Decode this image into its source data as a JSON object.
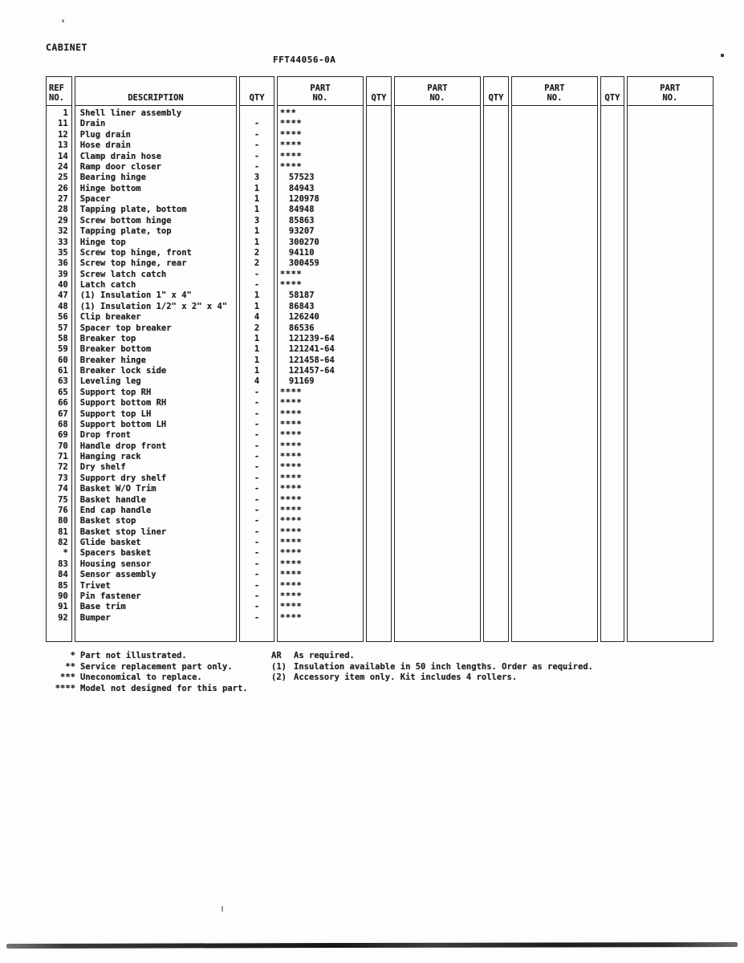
{
  "page": {
    "title": "CABINET",
    "doc_number": "FFT44056-0A"
  },
  "table": {
    "headers": {
      "ref": [
        "REF",
        "NO."
      ],
      "description": [
        "",
        "DESCRIPTION"
      ],
      "qty": [
        "",
        "QTY"
      ],
      "part": [
        "PART",
        "NO."
      ]
    },
    "rows": [
      {
        "ref": "1",
        "desc": "Shell liner assembly",
        "qty": "",
        "part": "***"
      },
      {
        "ref": "11",
        "desc": "Drain",
        "qty": "-",
        "part": "****"
      },
      {
        "ref": "12",
        "desc": "Plug drain",
        "qty": "-",
        "part": "****"
      },
      {
        "ref": "13",
        "desc": "Hose drain",
        "qty": "-",
        "part": "****"
      },
      {
        "ref": "14",
        "desc": "Clamp drain hose",
        "qty": "-",
        "part": "****"
      },
      {
        "ref": "24",
        "desc": "Ramp door closer",
        "qty": "-",
        "part": "****"
      },
      {
        "ref": "25",
        "desc": "Bearing hinge",
        "qty": "3",
        "part": "57523"
      },
      {
        "ref": "26",
        "desc": "Hinge bottom",
        "qty": "1",
        "part": "84943"
      },
      {
        "ref": "27",
        "desc": "Spacer",
        "qty": "1",
        "part": "120978"
      },
      {
        "ref": "28",
        "desc": "Tapping plate, bottom",
        "qty": "1",
        "part": "84948"
      },
      {
        "ref": "29",
        "desc": "Screw bottom hinge",
        "qty": "3",
        "part": "85863"
      },
      {
        "ref": "32",
        "desc": "Tapping plate, top",
        "qty": "1",
        "part": "93207"
      },
      {
        "ref": "33",
        "desc": "Hinge top",
        "qty": "1",
        "part": "300270"
      },
      {
        "ref": "35",
        "desc": "Screw top hinge, front",
        "qty": "2",
        "part": "94110"
      },
      {
        "ref": "36",
        "desc": "Screw top hinge, rear",
        "qty": "2",
        "part": "300459"
      },
      {
        "ref": "39",
        "desc": "Screw latch catch",
        "qty": "-",
        "part": "****"
      },
      {
        "ref": "40",
        "desc": "Latch catch",
        "qty": "-",
        "part": "****"
      },
      {
        "ref": "47",
        "desc": "(1) Insulation 1\" x 4\"",
        "qty": "1",
        "part": "58187"
      },
      {
        "ref": "48",
        "desc": "(1) Insulation 1/2\" x 2\" x 4\"",
        "qty": "1",
        "part": "86843"
      },
      {
        "ref": "56",
        "desc": "Clip breaker",
        "qty": "4",
        "part": "126240"
      },
      {
        "ref": "57",
        "desc": "Spacer top breaker",
        "qty": "2",
        "part": "86536"
      },
      {
        "ref": "58",
        "desc": "Breaker top",
        "qty": "1",
        "part": "121239-64"
      },
      {
        "ref": "59",
        "desc": "Breaker bottom",
        "qty": "1",
        "part": "121241-64"
      },
      {
        "ref": "60",
        "desc": "Breaker hinge",
        "qty": "1",
        "part": "121458-64"
      },
      {
        "ref": "61",
        "desc": "Breaker lock side",
        "qty": "1",
        "part": "121457-64"
      },
      {
        "ref": "63",
        "desc": "Leveling leg",
        "qty": "4",
        "part": "91169"
      },
      {
        "ref": "65",
        "desc": "Support top RH",
        "qty": "-",
        "part": "****"
      },
      {
        "ref": "66",
        "desc": "Support bottom RH",
        "qty": "-",
        "part": "****"
      },
      {
        "ref": "67",
        "desc": "Support top LH",
        "qty": "-",
        "part": "****"
      },
      {
        "ref": "68",
        "desc": "Support bottom LH",
        "qty": "-",
        "part": "****"
      },
      {
        "ref": "69",
        "desc": "Drop front",
        "qty": "-",
        "part": "****"
      },
      {
        "ref": "70",
        "desc": "Handle drop front",
        "qty": "-",
        "part": "****"
      },
      {
        "ref": "71",
        "desc": "Hanging rack",
        "qty": "-",
        "part": "****"
      },
      {
        "ref": "72",
        "desc": "Dry shelf",
        "qty": "-",
        "part": "****"
      },
      {
        "ref": "73",
        "desc": "Support dry shelf",
        "qty": "-",
        "part": "****"
      },
      {
        "ref": "74",
        "desc": "Basket W/O Trim",
        "qty": "-",
        "part": "****"
      },
      {
        "ref": "75",
        "desc": "Basket handle",
        "qty": "-",
        "part": "****"
      },
      {
        "ref": "76",
        "desc": "End cap handle",
        "qty": "-",
        "part": "****"
      },
      {
        "ref": "80",
        "desc": "Basket stop",
        "qty": "-",
        "part": "****"
      },
      {
        "ref": "81",
        "desc": "Basket stop liner",
        "qty": "-",
        "part": "****"
      },
      {
        "ref": "82",
        "desc": "Glide basket",
        "qty": "-",
        "part": "****"
      },
      {
        "ref": "*",
        "desc": "Spacers basket",
        "qty": "-",
        "part": "****"
      },
      {
        "ref": "83",
        "desc": "Housing sensor",
        "qty": "-",
        "part": "****"
      },
      {
        "ref": "84",
        "desc": "Sensor assembly",
        "qty": "-",
        "part": "****"
      },
      {
        "ref": "85",
        "desc": "Trivet",
        "qty": "-",
        "part": "****"
      },
      {
        "ref": "90",
        "desc": "Pin fastener",
        "qty": "-",
        "part": "****"
      },
      {
        "ref": "91",
        "desc": "Base trim",
        "qty": "-",
        "part": "****"
      },
      {
        "ref": "92",
        "desc": "Bumper",
        "qty": "-",
        "part": "****"
      }
    ]
  },
  "footnotes": {
    "left": [
      {
        "marker": "*",
        "text": "Part not illustrated."
      },
      {
        "marker": "**",
        "text": "Service replacement part only."
      },
      {
        "marker": "***",
        "text": "Uneconomical to replace."
      },
      {
        "marker": "****",
        "text": "Model not designed for this part."
      }
    ],
    "right": [
      {
        "marker": "AR",
        "text": "As required."
      },
      {
        "marker": "(1)",
        "text": "Insulation available in 50 inch lengths. Order as required."
      },
      {
        "marker": "(2)",
        "text": "Accessory item only.  Kit includes 4 rollers."
      }
    ]
  }
}
